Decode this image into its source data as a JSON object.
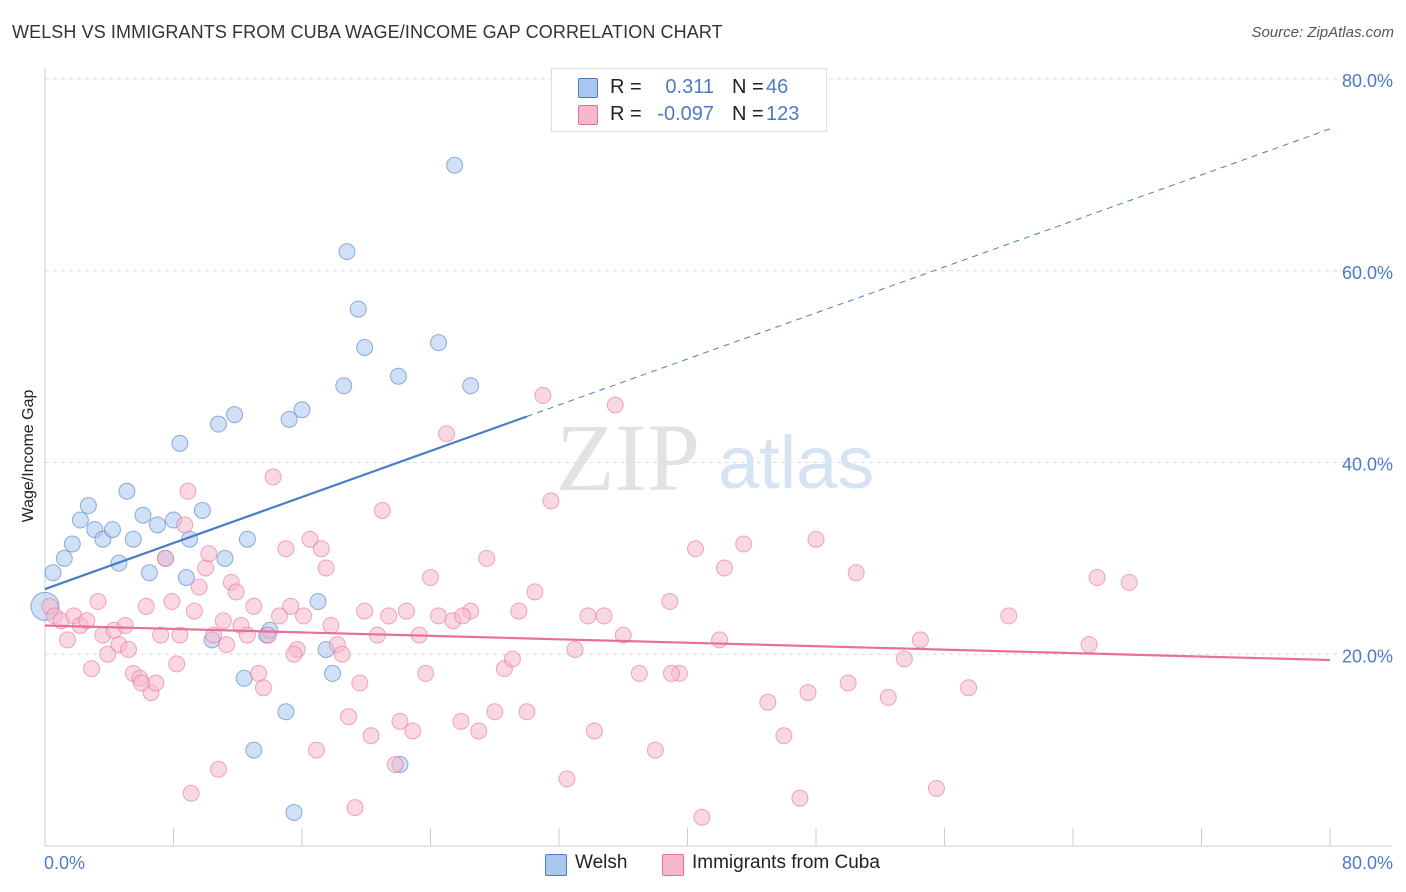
{
  "title": "WELSH VS IMMIGRANTS FROM CUBA WAGE/INCOME GAP CORRELATION CHART",
  "source": "Source: ZipAtlas.com",
  "watermark": {
    "zip": "ZIP",
    "atlas": "atlas"
  },
  "legend_top": {
    "rows": [
      {
        "r_label": "R =",
        "r_value": "0.311",
        "n_label": "N =",
        "n_value": "46",
        "color": "#a9c6ef"
      },
      {
        "r_label": "R =",
        "r_value": "-0.097",
        "n_label": "N =",
        "n_value": "123",
        "color": "#f6b8cc"
      }
    ]
  },
  "legend_bottom": [
    {
      "label": "Welsh",
      "color": "#a9c6ef"
    },
    {
      "label": "Immigrants from Cuba",
      "color": "#f6b8cc"
    }
  ],
  "chart_data": {
    "type": "scatter",
    "xlabel": "",
    "ylabel": "Wage/Income Gap",
    "xlim": [
      0,
      80
    ],
    "ylim": [
      0,
      80
    ],
    "x_tick_labels": [
      "0.0%",
      "80.0%"
    ],
    "y_ticks": [
      20,
      40,
      60,
      80
    ],
    "y_tick_labels": [
      "20.0%",
      "40.0%",
      "60.0%",
      "80.0%"
    ],
    "grid": true,
    "series": [
      {
        "name": "Welsh",
        "color": "#4a7dc4",
        "fill": "#a9c6ef",
        "trend": {
          "x0": 0,
          "y0": 26.8,
          "x1": 30,
          "y1": 44.8,
          "dash_x1": 80,
          "dash_y1": 74.8
        },
        "points": [
          [
            0.5,
            28.5
          ],
          [
            1.2,
            30.0
          ],
          [
            1.7,
            31.5
          ],
          [
            2.2,
            34.0
          ],
          [
            2.7,
            35.5
          ],
          [
            3.1,
            33.0
          ],
          [
            3.6,
            32.0
          ],
          [
            4.2,
            33.0
          ],
          [
            4.6,
            29.5
          ],
          [
            5.1,
            37.0
          ],
          [
            5.5,
            32.0
          ],
          [
            6.1,
            34.5
          ],
          [
            6.5,
            28.5
          ],
          [
            7.0,
            33.5
          ],
          [
            7.5,
            30.0
          ],
          [
            8.0,
            34.0
          ],
          [
            8.4,
            42.0
          ],
          [
            8.8,
            28.0
          ],
          [
            9.0,
            32.0
          ],
          [
            9.8,
            35.0
          ],
          [
            10.4,
            21.5
          ],
          [
            10.8,
            44.0
          ],
          [
            11.2,
            30.0
          ],
          [
            11.8,
            45.0
          ],
          [
            12.6,
            32.0
          ],
          [
            12.4,
            17.5
          ],
          [
            13.8,
            22.0
          ],
          [
            14.0,
            22.5
          ],
          [
            13.0,
            10.0
          ],
          [
            15.0,
            14.0
          ],
          [
            15.2,
            44.5
          ],
          [
            16.0,
            45.5
          ],
          [
            15.5,
            3.5
          ],
          [
            17.0,
            25.5
          ],
          [
            17.5,
            20.5
          ],
          [
            17.9,
            18.0
          ],
          [
            18.6,
            48.0
          ],
          [
            18.8,
            62.0
          ],
          [
            19.5,
            56.0
          ],
          [
            19.9,
            52.0
          ],
          [
            22.0,
            49.0
          ],
          [
            22.1,
            8.5
          ],
          [
            24.5,
            52.5
          ],
          [
            25.5,
            71.0
          ],
          [
            26.5,
            48.0
          ],
          [
            0.0,
            25.0
          ]
        ]
      },
      {
        "name": "Immigrants from Cuba",
        "color": "#e86f9c",
        "fill": "#f6b8cc",
        "trend": {
          "x0": 0,
          "y0": 23.0,
          "x1": 80,
          "y1": 19.4
        },
        "points": [
          [
            0.3,
            25.0
          ],
          [
            0.6,
            24.0
          ],
          [
            1.0,
            23.5
          ],
          [
            1.4,
            21.5
          ],
          [
            1.8,
            24.0
          ],
          [
            2.2,
            23.0
          ],
          [
            2.6,
            23.5
          ],
          [
            2.9,
            18.5
          ],
          [
            3.3,
            25.5
          ],
          [
            3.6,
            22.0
          ],
          [
            3.9,
            20.0
          ],
          [
            4.3,
            22.5
          ],
          [
            4.6,
            21.0
          ],
          [
            5.0,
            23.0
          ],
          [
            5.2,
            20.5
          ],
          [
            5.5,
            18.0
          ],
          [
            5.9,
            17.5
          ],
          [
            6.3,
            25.0
          ],
          [
            6.6,
            16.0
          ],
          [
            6.9,
            17.0
          ],
          [
            7.2,
            22.0
          ],
          [
            7.5,
            30.0
          ],
          [
            7.9,
            25.5
          ],
          [
            8.2,
            19.0
          ],
          [
            8.4,
            22.0
          ],
          [
            8.7,
            33.5
          ],
          [
            8.9,
            37.0
          ],
          [
            9.1,
            5.5
          ],
          [
            9.3,
            24.5
          ],
          [
            9.6,
            27.0
          ],
          [
            10.0,
            29.0
          ],
          [
            10.2,
            30.5
          ],
          [
            10.5,
            22.0
          ],
          [
            10.8,
            8.0
          ],
          [
            11.1,
            23.5
          ],
          [
            11.3,
            21.0
          ],
          [
            11.6,
            27.5
          ],
          [
            11.9,
            26.5
          ],
          [
            12.2,
            23.0
          ],
          [
            12.6,
            22.0
          ],
          [
            13.0,
            25.0
          ],
          [
            13.3,
            18.0
          ],
          [
            13.6,
            16.5
          ],
          [
            13.9,
            22.0
          ],
          [
            14.2,
            38.5
          ],
          [
            14.6,
            24.0
          ],
          [
            15.0,
            31.0
          ],
          [
            15.3,
            25.0
          ],
          [
            15.7,
            20.5
          ],
          [
            16.1,
            24.0
          ],
          [
            16.5,
            32.0
          ],
          [
            16.9,
            10.0
          ],
          [
            17.2,
            31.0
          ],
          [
            17.5,
            29.0
          ],
          [
            17.8,
            23.0
          ],
          [
            18.2,
            21.0
          ],
          [
            18.5,
            20.0
          ],
          [
            18.9,
            13.5
          ],
          [
            19.3,
            4.0
          ],
          [
            19.6,
            17.0
          ],
          [
            19.9,
            24.5
          ],
          [
            20.3,
            11.5
          ],
          [
            20.7,
            22.0
          ],
          [
            21.0,
            35.0
          ],
          [
            21.4,
            24.0
          ],
          [
            21.8,
            8.5
          ],
          [
            22.1,
            13.0
          ],
          [
            22.5,
            24.5
          ],
          [
            22.9,
            12.0
          ],
          [
            23.3,
            22.0
          ],
          [
            23.7,
            18.0
          ],
          [
            24.0,
            28.0
          ],
          [
            24.5,
            24.0
          ],
          [
            25.0,
            43.0
          ],
          [
            25.4,
            23.5
          ],
          [
            25.9,
            13.0
          ],
          [
            26.5,
            24.5
          ],
          [
            27.0,
            12.0
          ],
          [
            27.5,
            30.0
          ],
          [
            28.0,
            14.0
          ],
          [
            28.6,
            18.5
          ],
          [
            29.1,
            19.5
          ],
          [
            29.5,
            24.5
          ],
          [
            30.0,
            14.0
          ],
          [
            30.5,
            26.5
          ],
          [
            31.0,
            47.0
          ],
          [
            31.5,
            36.0
          ],
          [
            32.5,
            7.0
          ],
          [
            33.0,
            20.5
          ],
          [
            33.8,
            24.0
          ],
          [
            34.2,
            12.0
          ],
          [
            34.8,
            24.0
          ],
          [
            35.5,
            46.0
          ],
          [
            36.0,
            22.0
          ],
          [
            37.0,
            18.0
          ],
          [
            38.0,
            10.0
          ],
          [
            38.9,
            25.5
          ],
          [
            39.5,
            18.0
          ],
          [
            40.5,
            31.0
          ],
          [
            40.9,
            3.0
          ],
          [
            42.0,
            21.5
          ],
          [
            42.3,
            29.0
          ],
          [
            43.5,
            31.5
          ],
          [
            45.0,
            15.0
          ],
          [
            46.0,
            11.5
          ],
          [
            47.0,
            5.0
          ],
          [
            47.5,
            16.0
          ],
          [
            48.0,
            32.0
          ],
          [
            50.0,
            17.0
          ],
          [
            50.5,
            28.5
          ],
          [
            52.5,
            15.5
          ],
          [
            53.5,
            19.5
          ],
          [
            54.5,
            21.5
          ],
          [
            55.5,
            6.0
          ],
          [
            57.5,
            16.5
          ],
          [
            60.0,
            24.0
          ],
          [
            65.0,
            21.0
          ],
          [
            65.5,
            28.0
          ],
          [
            67.5,
            27.5
          ],
          [
            39.0,
            18.0
          ],
          [
            15.5,
            20.0
          ],
          [
            6.0,
            17.0
          ],
          [
            26.0,
            24.0
          ]
        ]
      }
    ]
  }
}
